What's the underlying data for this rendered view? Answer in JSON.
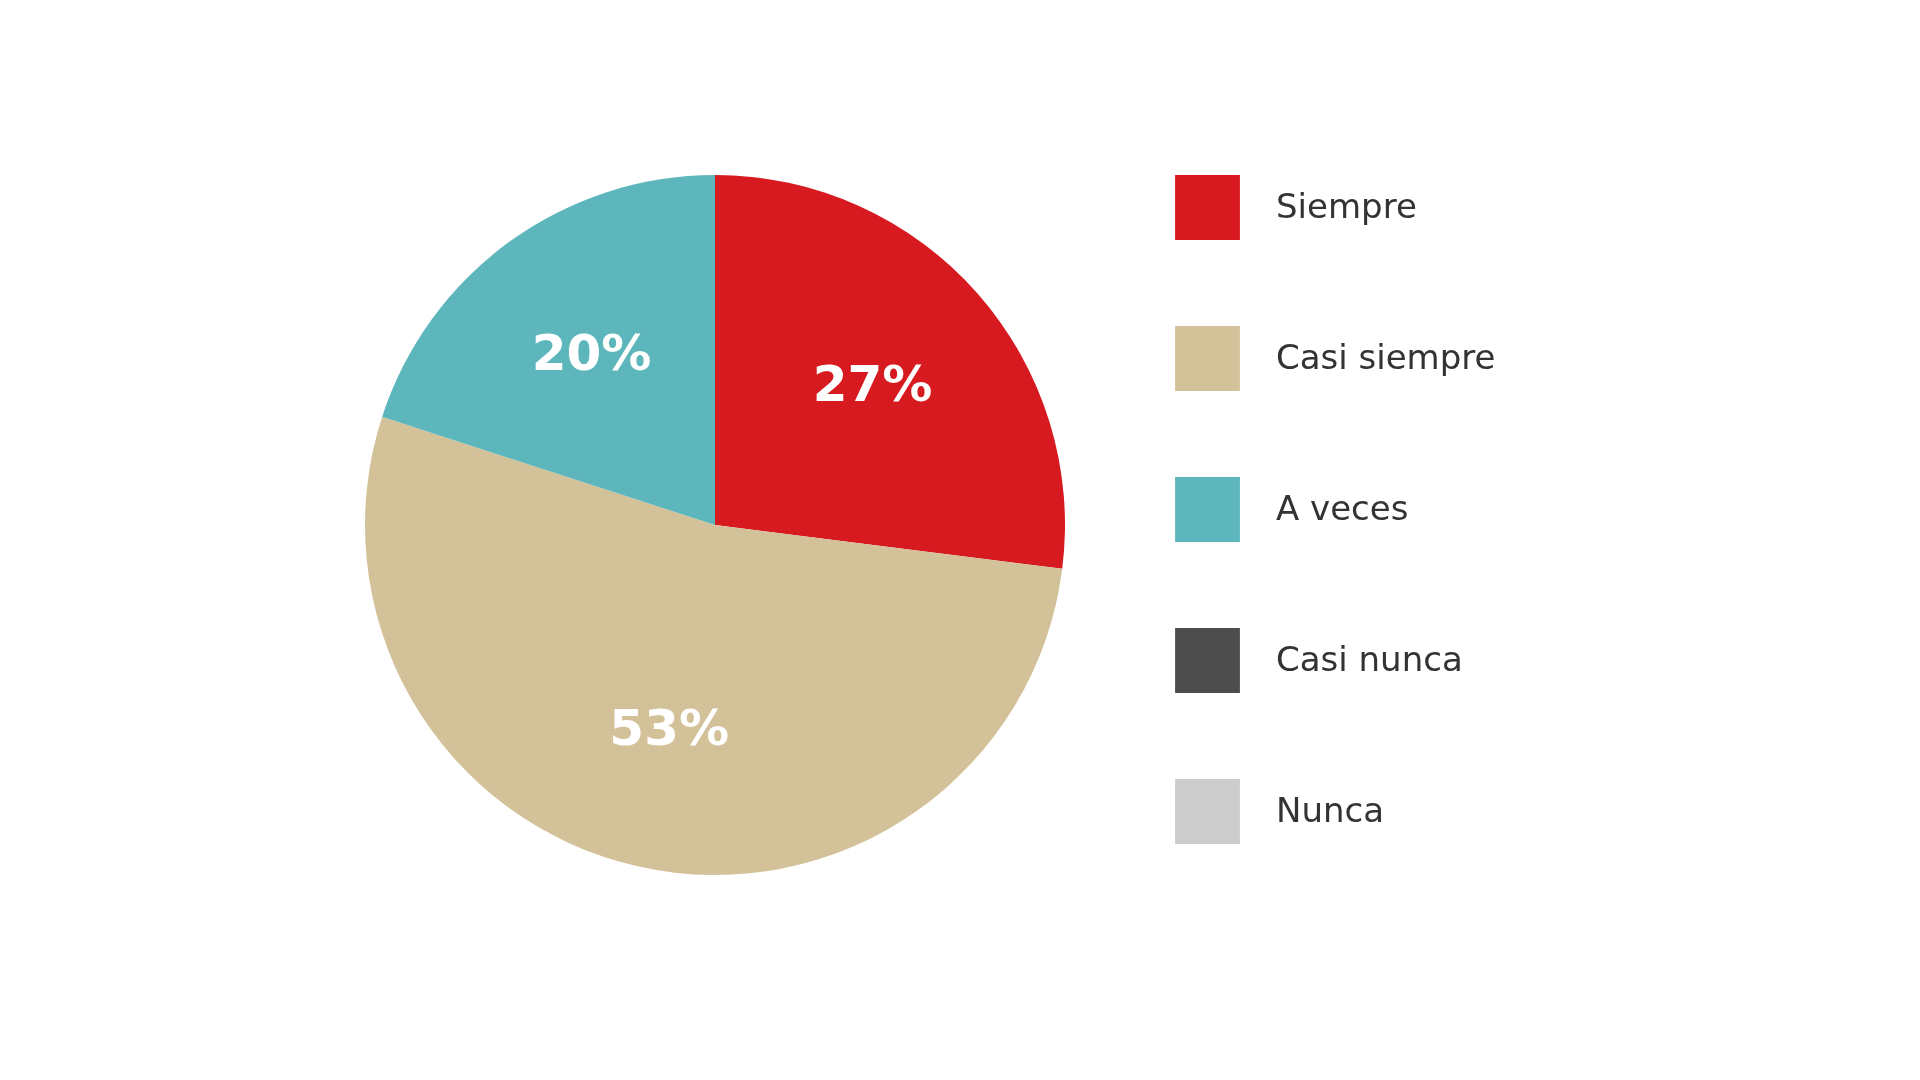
{
  "chart_data": {
    "type": "pie",
    "categories": [
      "Siempre",
      "Casi siempre",
      "A veces",
      "Casi nunca",
      "Nunca"
    ],
    "values": [
      27,
      53,
      20,
      0,
      0
    ],
    "colors": [
      "#d71920",
      "#d3c299",
      "#5db6bc",
      "#4d4d4d",
      "#cccccc"
    ],
    "value_labels": [
      "27%",
      "53%",
      "20%",
      null,
      null
    ],
    "legend": "right"
  }
}
